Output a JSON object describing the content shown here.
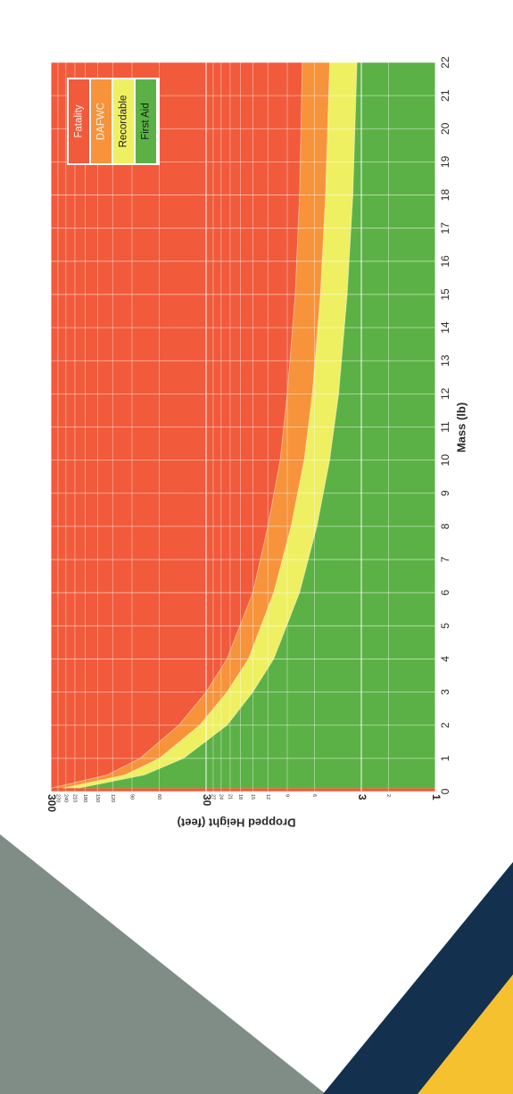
{
  "chart_data": {
    "type": "area",
    "title": "",
    "xlabel": "Mass (lb)",
    "ylabel": "Dropped Height (feet)",
    "x_ticks": [
      "0",
      "1",
      "2",
      "3",
      "4",
      "5",
      "6",
      "7",
      "8",
      "9",
      "10",
      "11",
      "12",
      "13",
      "14",
      "15",
      "16",
      "17",
      "18",
      "19",
      "20",
      "21",
      "22"
    ],
    "y_scale": "log",
    "y_major_ticks": [
      "1",
      "3",
      "30",
      "300"
    ],
    "y_minor_ticks": [
      "2",
      "6",
      "9",
      "12",
      "15",
      "18",
      "21",
      "24",
      "27",
      "60",
      "90",
      "120",
      "150",
      "180",
      "210",
      "240",
      "270"
    ],
    "xlim": [
      0,
      22
    ],
    "ylim": [
      1,
      300
    ],
    "legend_position": "top-right",
    "zones": [
      {
        "name": "Fatality",
        "color": "#f15a3b",
        "lower_boundary": [
          [
            0.1,
            300
          ],
          [
            0.5,
            130
          ],
          [
            1,
            80
          ],
          [
            2,
            45
          ],
          [
            3,
            30
          ],
          [
            4,
            22
          ],
          [
            6,
            15
          ],
          [
            8,
            12
          ],
          [
            10,
            10
          ],
          [
            12,
            9
          ],
          [
            15,
            8
          ],
          [
            18,
            7.5
          ],
          [
            22,
            7.2
          ]
        ]
      },
      {
        "name": "DAFWC",
        "color": "#f7933a",
        "lower_boundary": [
          [
            0.1,
            250
          ],
          [
            0.5,
            100
          ],
          [
            1,
            60
          ],
          [
            2,
            33
          ],
          [
            3,
            22
          ],
          [
            4,
            16
          ],
          [
            6,
            11
          ],
          [
            8,
            8.5
          ],
          [
            10,
            7
          ],
          [
            12,
            6.2
          ],
          [
            15,
            5.5
          ],
          [
            18,
            5.1
          ],
          [
            22,
            4.8
          ]
        ]
      },
      {
        "name": "Recordable",
        "color": "#eef062",
        "lower_boundary": [
          [
            0.1,
            200
          ],
          [
            0.5,
            75
          ],
          [
            1,
            42
          ],
          [
            2,
            22
          ],
          [
            3,
            15
          ],
          [
            4,
            11
          ],
          [
            6,
            7.5
          ],
          [
            8,
            5.8
          ],
          [
            10,
            4.8
          ],
          [
            12,
            4.2
          ],
          [
            15,
            3.7
          ],
          [
            18,
            3.4
          ],
          [
            22,
            3.2
          ]
        ]
      },
      {
        "name": "First Aid",
        "color": "#5cb146",
        "lower_boundary": [
          [
            0,
            1
          ],
          [
            22,
            1
          ]
        ]
      }
    ]
  },
  "colors": {
    "grey_band": "#7f8d86",
    "navy_band": "#13304f",
    "gold_band": "#f6c12f"
  }
}
